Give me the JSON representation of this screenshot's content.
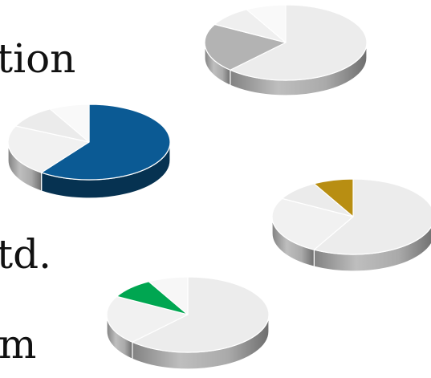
{
  "text_fragments": [
    "tion",
    "td.",
    "m"
  ],
  "pies": [
    {
      "name": "pie-top-right",
      "slices": [
        {
          "value": 0.62,
          "color": "#ececec",
          "highlighted": false
        },
        {
          "value": 0.21,
          "color": "#b3b3b3",
          "highlighted": false
        },
        {
          "value": 0.09,
          "color": "#efefef",
          "highlighted": false
        },
        {
          "value": 0.08,
          "color": "#f9f9f9",
          "highlighted": false
        }
      ]
    },
    {
      "name": "pie-blue",
      "slices": [
        {
          "value": 0.6,
          "color": "#0b5a94",
          "highlighted": true
        },
        {
          "value": 0.22,
          "color": "#f1f1f1",
          "highlighted": false
        },
        {
          "value": 0.1,
          "color": "#ebebeb",
          "highlighted": false
        },
        {
          "value": 0.08,
          "color": "#f9f9f9",
          "highlighted": false
        }
      ]
    },
    {
      "name": "pie-gold",
      "slices": [
        {
          "value": 0.58,
          "color": "#ececec",
          "highlighted": false
        },
        {
          "value": 0.25,
          "color": "#f1f1f1",
          "highlighted": false
        },
        {
          "value": 0.09,
          "color": "#ebebeb",
          "highlighted": false
        },
        {
          "value": 0.08,
          "color": "#b88e12",
          "highlighted": true
        }
      ]
    },
    {
      "name": "pie-green",
      "slices": [
        {
          "value": 0.62,
          "color": "#ececec",
          "highlighted": false
        },
        {
          "value": 0.21,
          "color": "#f1f1f1",
          "highlighted": false
        },
        {
          "value": 0.09,
          "color": "#00a651",
          "highlighted": true
        },
        {
          "value": 0.08,
          "color": "#f7f7f7",
          "highlighted": false
        }
      ]
    }
  ]
}
